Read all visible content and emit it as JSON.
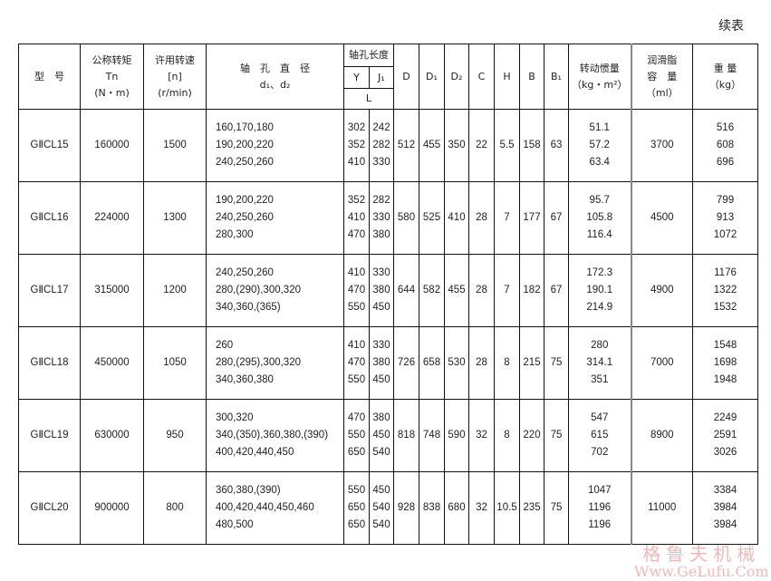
{
  "title": "续表",
  "header": {
    "model": "型　号",
    "torque": [
      "公称转矩",
      "Tn",
      "(N・m)"
    ],
    "speed": [
      "许用转速",
      "[n]",
      "(r/min)"
    ],
    "bore": [
      "轴　孔　直　径",
      "d₁、d₂"
    ],
    "bore_length": "轴孔长度",
    "y": "Y",
    "j1": "J₁",
    "l": "L",
    "d": "D",
    "d1": "D₁",
    "d2": "D₂",
    "c": "C",
    "h": "H",
    "b": "B",
    "b1": "B₁",
    "inertia": [
      "转动惯量",
      "（kg・m²）"
    ],
    "grease": [
      "润滑脂",
      "容　量",
      "（ml）"
    ],
    "weight": [
      "重 量",
      "（kg）"
    ]
  },
  "rows": [
    {
      "model": "GⅡCL15",
      "torque": "160000",
      "speed": "1500",
      "bore": [
        "160,170,180",
        "190,200,220",
        "240,250,260"
      ],
      "y": [
        "302",
        "352",
        "410"
      ],
      "j1": [
        "242",
        "282",
        "330"
      ],
      "D": "512",
      "D1": "455",
      "D2": "350",
      "C": "22",
      "H": "5.5",
      "B": "158",
      "B1": "63",
      "inertia": [
        "51.1",
        "57.2",
        "63.4"
      ],
      "grease": "3700",
      "weight": [
        "516",
        "608",
        "696"
      ]
    },
    {
      "model": "GⅡCL16",
      "torque": "224000",
      "speed": "1300",
      "bore": [
        "190,200,220",
        "240,250,260",
        "280,300"
      ],
      "y": [
        "352",
        "410",
        "470"
      ],
      "j1": [
        "282",
        "330",
        "380"
      ],
      "D": "580",
      "D1": "525",
      "D2": "410",
      "C": "28",
      "H": "7",
      "B": "177",
      "B1": "67",
      "inertia": [
        "95.7",
        "105.8",
        "116.4"
      ],
      "grease": "4500",
      "weight": [
        "799",
        "913",
        "1072"
      ]
    },
    {
      "model": "GⅡCL17",
      "torque": "315000",
      "speed": "1200",
      "bore": [
        "240,250,260",
        "280,(290),300,320",
        "340,360,(365)"
      ],
      "y": [
        "410",
        "470",
        "550"
      ],
      "j1": [
        "330",
        "380",
        "450"
      ],
      "D": "644",
      "D1": "582",
      "D2": "455",
      "C": "28",
      "H": "7",
      "B": "182",
      "B1": "67",
      "inertia": [
        "172.3",
        "190.1",
        "214.9"
      ],
      "grease": "4900",
      "weight": [
        "1176",
        "1322",
        "1532"
      ]
    },
    {
      "model": "GⅡCL18",
      "torque": "450000",
      "speed": "1050",
      "bore": [
        "260",
        "280,(295),300,320",
        "340,360,380"
      ],
      "y": [
        "410",
        "470",
        "550"
      ],
      "j1": [
        "330",
        "380",
        "450"
      ],
      "D": "726",
      "D1": "658",
      "D2": "530",
      "C": "28",
      "H": "8",
      "B": "215",
      "B1": "75",
      "inertia": [
        "280",
        "314.1",
        "351"
      ],
      "grease": "7000",
      "weight": [
        "1548",
        "1698",
        "1948"
      ]
    },
    {
      "model": "GⅡCL19",
      "torque": "630000",
      "speed": "950",
      "bore": [
        "300,320",
        "340,(350),360,380,(390)",
        "400,420,440,450"
      ],
      "y": [
        "470",
        "550",
        "650"
      ],
      "j1": [
        "380",
        "450",
        "540"
      ],
      "D": "818",
      "D1": "748",
      "D2": "590",
      "C": "32",
      "H": "8",
      "B": "220",
      "B1": "75",
      "inertia": [
        "547",
        "615",
        "702"
      ],
      "grease": "8900",
      "weight": [
        "2249",
        "2591",
        "3026"
      ]
    },
    {
      "model": "GⅡCL20",
      "torque": "900000",
      "speed": "800",
      "bore": [
        "360,380,(390)",
        "400,420,440,450,460",
        "480,500"
      ],
      "y": [
        "550",
        "650",
        "650"
      ],
      "j1": [
        "450",
        "540",
        "540"
      ],
      "D": "928",
      "D1": "838",
      "D2": "680",
      "C": "32",
      "H": "10.5",
      "B": "235",
      "B1": "75",
      "inertia": [
        "1047",
        "1196",
        "1196"
      ],
      "grease": "11000",
      "weight": [
        "3384",
        "3984",
        "3984"
      ]
    }
  ],
  "watermark": {
    "cn": "格鲁夫机械",
    "en": "Www.GeLufu.Com"
  }
}
